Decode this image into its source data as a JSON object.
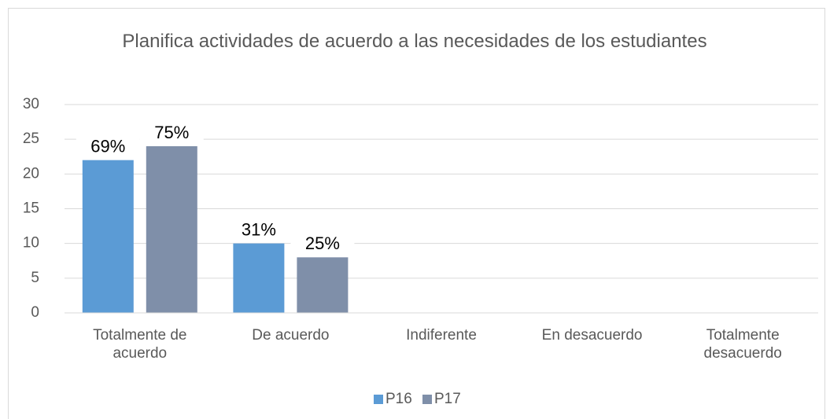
{
  "chart_data": {
    "type": "bar",
    "title": "Planifica actividades de acuerdo a las necesidades de los estudiantes",
    "categories": [
      "Totalmente de acuerdo",
      "De acuerdo",
      "Indiferente",
      "En desacuerdo",
      "Totalmente desacuerdo"
    ],
    "series": [
      {
        "name": "P16",
        "color": "#5b9bd5",
        "values": [
          22,
          10,
          0,
          0,
          0
        ],
        "value_labels": [
          "69%",
          "31%",
          null,
          null,
          null
        ]
      },
      {
        "name": "P17",
        "color": "#7f8fa9",
        "values": [
          24,
          8,
          0,
          0,
          0
        ],
        "value_labels": [
          "75%",
          "25%",
          null,
          null,
          null
        ]
      }
    ],
    "ylim": [
      0,
      30
    ],
    "yticks": [
      0,
      5,
      10,
      15,
      20,
      25,
      30
    ],
    "grid": true,
    "legend": "bottom"
  }
}
